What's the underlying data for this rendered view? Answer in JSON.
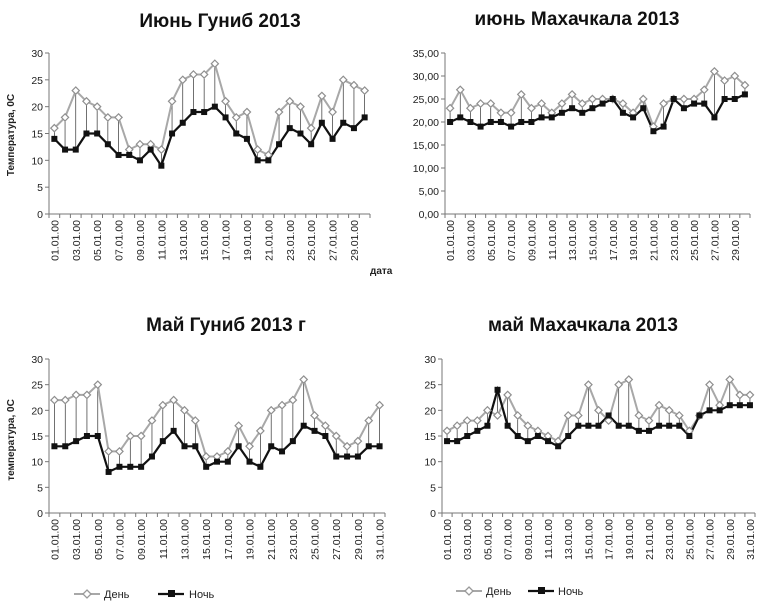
{
  "chart_data": [
    {
      "type": "line",
      "title": "Июнь Гуниб 2013",
      "xlabel": "дата",
      "ylabel": "Температура, 0С",
      "ylim": [
        0,
        30
      ],
      "yticks": [
        "0",
        "5",
        "10",
        "15",
        "20",
        "25",
        "30"
      ],
      "x_tick_labels": [
        "01.01.00",
        "03.01.00",
        "05.01.00",
        "07.01.00",
        "09.01.00",
        "11.01.00",
        "13.01.00",
        "15.01.00",
        "17.01.00",
        "19.01.00",
        "21.01.00",
        "23.01.00",
        "25.01.00",
        "27.01.00",
        "29.01.00"
      ],
      "n_points": 30,
      "series": [
        {
          "name": "День",
          "values": [
            16,
            18,
            23,
            21,
            20,
            18,
            18,
            12,
            13,
            13,
            12,
            21,
            25,
            26,
            26,
            28,
            21,
            18,
            19,
            12,
            11,
            19,
            21,
            20,
            16,
            22,
            19,
            25,
            24,
            23
          ]
        },
        {
          "name": "Ночь",
          "values": [
            14,
            12,
            12,
            15,
            15,
            13,
            11,
            11,
            10,
            12,
            9,
            15,
            17,
            19,
            19,
            20,
            18,
            15,
            14,
            10,
            10,
            13,
            16,
            15,
            13,
            17,
            14,
            17,
            16,
            18
          ]
        }
      ]
    },
    {
      "type": "line",
      "title": "июнь Махачкала 2013",
      "xlabel": "",
      "ylabel": "",
      "ylim": [
        0,
        35
      ],
      "yticks": [
        "0,00",
        "5,00",
        "10,00",
        "15,00",
        "20,00",
        "25,00",
        "30,00",
        "35,00"
      ],
      "x_tick_labels": [
        "01.01.00",
        "03.01.00",
        "05.01.00",
        "07.01.00",
        "09.01.00",
        "11.01.00",
        "13.01.00",
        "15.01.00",
        "17.01.00",
        "19.01.00",
        "21.01.00",
        "23.01.00",
        "25.01.00",
        "27.01.00",
        "29.01.00"
      ],
      "n_points": 30,
      "series": [
        {
          "name": "День",
          "values": [
            23,
            27,
            23,
            24,
            24,
            22,
            22,
            26,
            23,
            24,
            22,
            24,
            26,
            24,
            25,
            25,
            25,
            24,
            22,
            25,
            19,
            24,
            25,
            25,
            25,
            27,
            31,
            29,
            30,
            28
          ]
        },
        {
          "name": "Ночь",
          "values": [
            20,
            21,
            20,
            19,
            20,
            20,
            19,
            20,
            20,
            21,
            21,
            22,
            23,
            22,
            23,
            24,
            25,
            22,
            21,
            23,
            18,
            19,
            25,
            23,
            24,
            24,
            21,
            25,
            25,
            26
          ]
        }
      ]
    },
    {
      "type": "line",
      "title": "Май Гуниб 2013 г",
      "xlabel": "",
      "ylabel": "температура, 0С",
      "ylim": [
        0,
        30
      ],
      "yticks": [
        "0",
        "5",
        "10",
        "15",
        "20",
        "25",
        "30"
      ],
      "x_tick_labels": [
        "01.01.00",
        "03.01.00",
        "05.01.00",
        "07.01.00",
        "09.01.00",
        "11.01.00",
        "13.01.00",
        "15.01.00",
        "17.01.00",
        "19.01.00",
        "21.01.00",
        "23.01.00",
        "25.01.00",
        "27.01.00",
        "29.01.00",
        "31.01.00"
      ],
      "n_points": 31,
      "series": [
        {
          "name": "День",
          "values": [
            22,
            22,
            23,
            23,
            25,
            12,
            12,
            15,
            15,
            18,
            21,
            22,
            20,
            18,
            11,
            11,
            12,
            17,
            13,
            16,
            20,
            21,
            22,
            26,
            19,
            17,
            15,
            13,
            14,
            18,
            21
          ]
        },
        {
          "name": "Ночь",
          "values": [
            13,
            13,
            14,
            15,
            15,
            8,
            9,
            9,
            9,
            11,
            14,
            16,
            13,
            13,
            9,
            10,
            10,
            13,
            10,
            9,
            13,
            12,
            14,
            17,
            16,
            15,
            11,
            11,
            11,
            13,
            13
          ]
        }
      ]
    },
    {
      "type": "line",
      "title": "май Махачкала 2013",
      "xlabel": "",
      "ylabel": "",
      "ylim": [
        0,
        30
      ],
      "yticks": [
        "0",
        "5",
        "10",
        "15",
        "20",
        "25",
        "30"
      ],
      "x_tick_labels": [
        "01.01.00",
        "03.01.00",
        "05.01.00",
        "07.01.00",
        "09.01.00",
        "11.01.00",
        "13.01.00",
        "15.01.00",
        "17.01.00",
        "19.01.00",
        "21.01.00",
        "23.01.00",
        "25.01.00",
        "27.01.00",
        "29.01.00",
        "31.01.00"
      ],
      "n_points": 31,
      "series": [
        {
          "name": "День",
          "values": [
            16,
            17,
            18,
            18,
            20,
            19,
            23,
            19,
            17,
            16,
            15,
            14,
            19,
            19,
            25,
            20,
            18,
            25,
            26,
            19,
            18,
            21,
            20,
            19,
            16,
            19,
            25,
            21,
            26,
            23,
            23
          ]
        },
        {
          "name": "Ночь",
          "values": [
            14,
            14,
            15,
            16,
            17,
            24,
            17,
            15,
            14,
            15,
            14,
            13,
            15,
            17,
            17,
            17,
            19,
            17,
            17,
            16,
            16,
            17,
            17,
            17,
            15,
            19,
            20,
            20,
            21,
            21,
            21
          ]
        }
      ]
    }
  ],
  "legend": {
    "day_label": "День",
    "night_label": "Ночь"
  },
  "colors": {
    "day": "#a8a8a8",
    "night": "#111111"
  }
}
